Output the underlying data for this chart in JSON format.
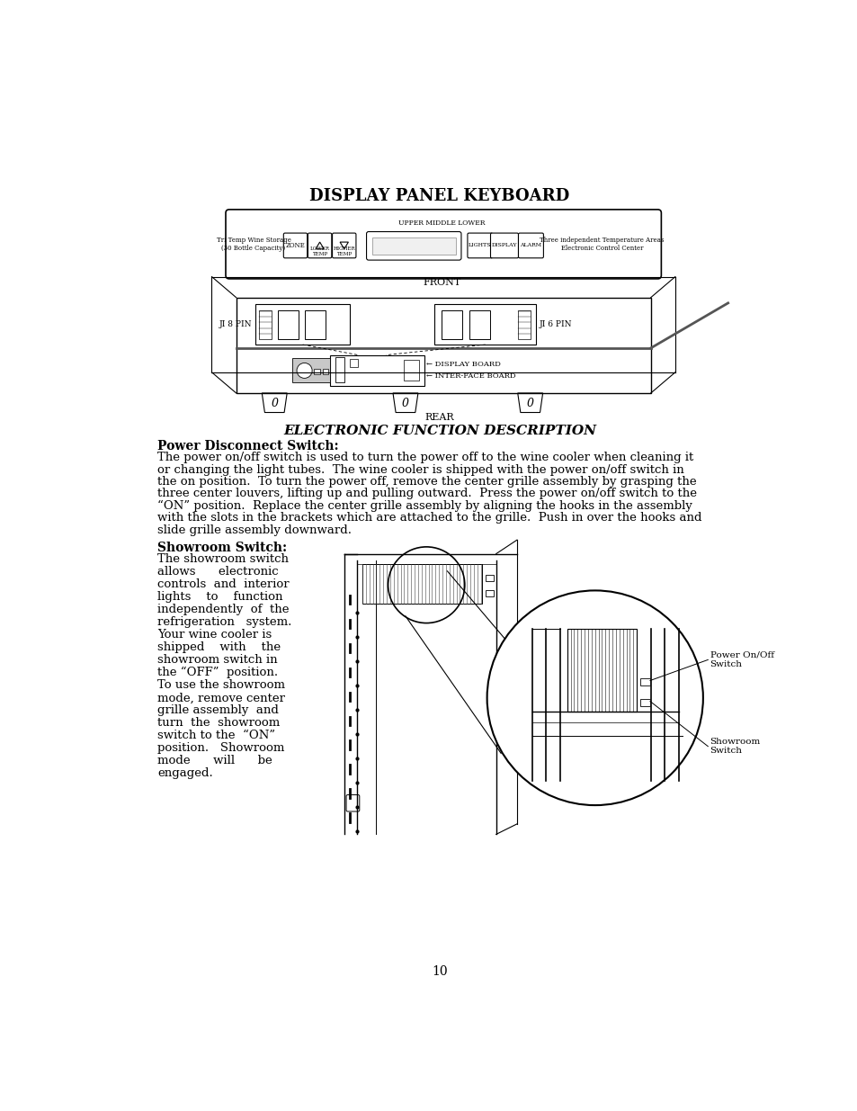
{
  "page_bg": "#ffffff",
  "title_display_panel": "DISPLAY PANEL KEYBOARD",
  "subtitle_electronic": "ELECTRONIC FUNCTION DESCRIPTION",
  "section1_title": "Power Disconnect Switch:",
  "section1_body_lines": [
    "The power on/off switch is used to turn the power off to the wine cooler when cleaning it",
    "or changing the light tubes.  The wine cooler is shipped with the power on/off switch in",
    "the on position.  To turn the power off, remove the center grille assembly by grasping the",
    "three center louvers, lifting up and pulling outward.  Press the power on/off switch to the",
    "“ON” position.  Replace the center grille assembly by aligning the hooks in the assembly",
    "with the slots in the brackets which are attached to the grille.  Push in over the hooks and",
    "slide grille assembly downward."
  ],
  "section2_title": "Showroom Switch:",
  "section2_body_lines": [
    "The showroom switch",
    "allows      electronic",
    "controls  and  interior",
    "lights    to    function",
    "independently  of  the",
    "refrigeration   system.",
    "Your wine cooler is",
    "shipped    with    the",
    "showroom switch in",
    "the “OFF”  position.",
    "To use the showroom",
    "mode, remove center",
    "grille assembly  and",
    "turn  the  showroom",
    "switch to the  “ON”",
    "position.   Showroom",
    "mode      will      be",
    "engaged."
  ],
  "page_number": "10",
  "front_label": "FRONT",
  "rear_label": "REAR",
  "upper_middle_lower": "UPPER MIDDLE LOWER",
  "tri_temp_label": "Tri Temp Wine Storage\n(30 Bottle Capacity)",
  "three_independent_label": "Three independent Temperature Areas\nElectronic Control Center",
  "power_onoff_label": "Power On/Off\nSwitch",
  "showroom_switch_label": "Showroom\nSwitch",
  "ji8pin_label": "JI 8 PIN",
  "ji6pin_label": "JI 6 PIN",
  "display_board_label": "← DISPLAY BOARD",
  "interface_board_label": "← INTER-FACE BOARD"
}
